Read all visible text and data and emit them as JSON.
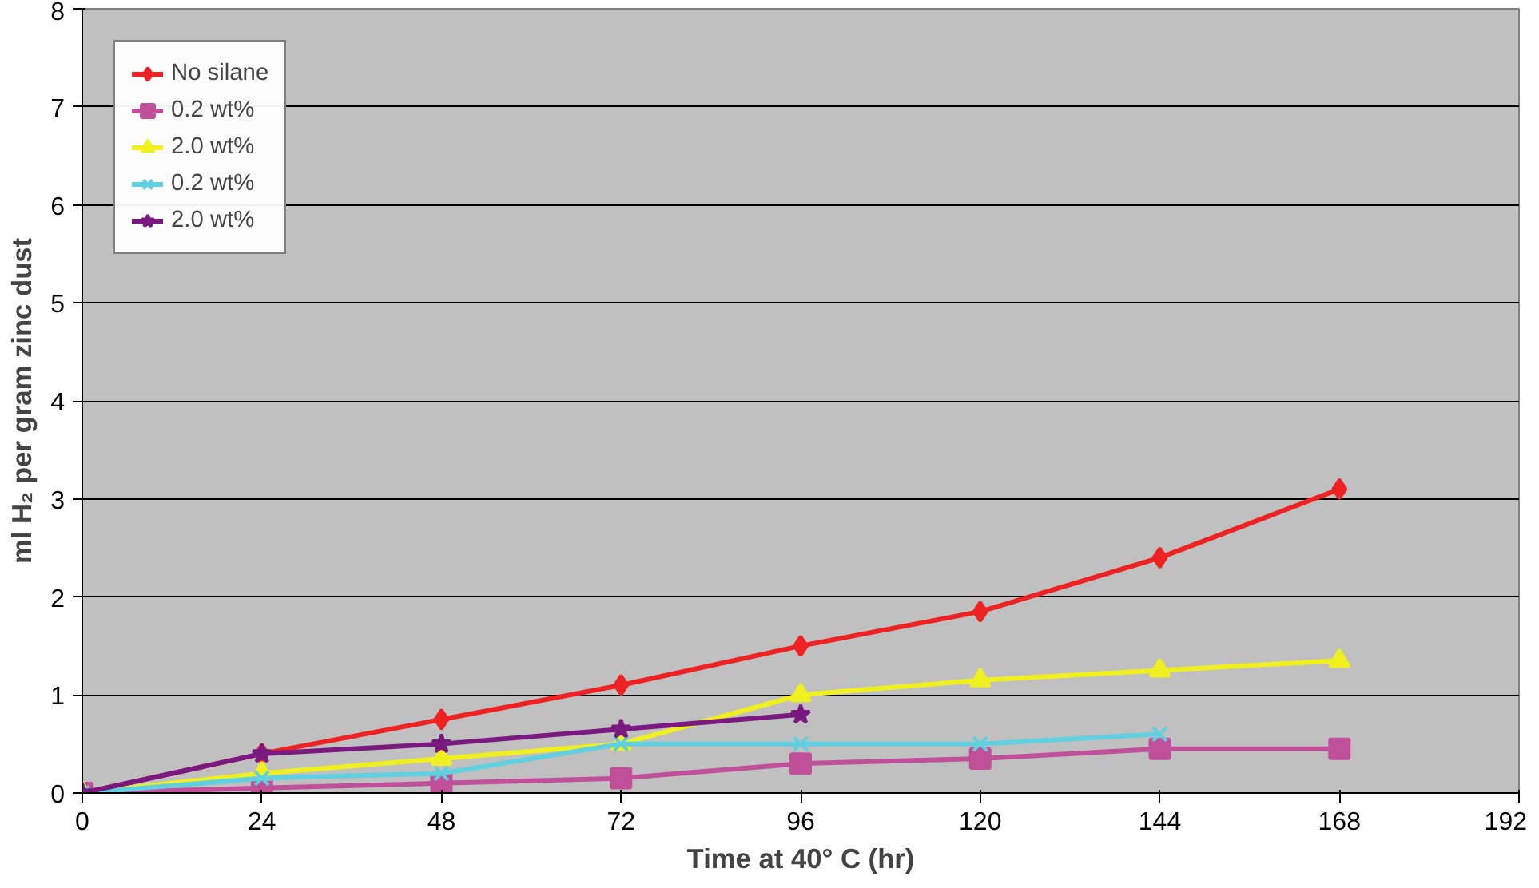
{
  "chart_data": {
    "type": "line",
    "xlabel": "Time at 40° C (hr)",
    "ylabel": "ml H₂ per gram zinc dust",
    "xlim": [
      0,
      192
    ],
    "xticks": [
      0,
      24,
      48,
      72,
      96,
      120,
      144,
      168,
      192
    ],
    "ylim": [
      0,
      8
    ],
    "yticks": [
      0,
      1,
      2,
      3,
      4,
      5,
      6,
      7,
      8
    ],
    "grid": "y",
    "legend": "top left",
    "series": [
      {
        "name": "No silane",
        "color": "#ee2222",
        "marker": "diamond",
        "x": [
          0,
          24,
          48,
          72,
          96,
          120,
          144,
          168
        ],
        "values": [
          0,
          0.4,
          0.75,
          1.1,
          1.5,
          1.85,
          2.4,
          3.1
        ]
      },
      {
        "name": "0.2 wt%",
        "color": "#c0509a",
        "marker": "square",
        "x": [
          0,
          24,
          48,
          72,
          96,
          120,
          144,
          168
        ],
        "values": [
          0,
          0.05,
          0.1,
          0.15,
          0.3,
          0.35,
          0.45,
          0.45
        ]
      },
      {
        "name": "2.0 wt%",
        "color": "#f0f020",
        "marker": "triangle",
        "x": [
          0,
          24,
          48,
          72,
          96,
          120,
          144,
          168
        ],
        "values": [
          0,
          0.2,
          0.35,
          0.5,
          1.0,
          1.15,
          1.25,
          1.35
        ]
      },
      {
        "name": "0.2 wt%",
        "color": "#60d0e0",
        "marker": "cross",
        "x": [
          0,
          24,
          48,
          72,
          96,
          120,
          144
        ],
        "values": [
          0,
          0.15,
          0.2,
          0.5,
          0.5,
          0.5,
          0.6
        ]
      },
      {
        "name": "2.0 wt%",
        "color": "#7a1a80",
        "marker": "star",
        "x": [
          0,
          24,
          48,
          72,
          96
        ],
        "values": [
          0,
          0.4,
          0.5,
          0.65,
          0.8
        ]
      }
    ]
  }
}
